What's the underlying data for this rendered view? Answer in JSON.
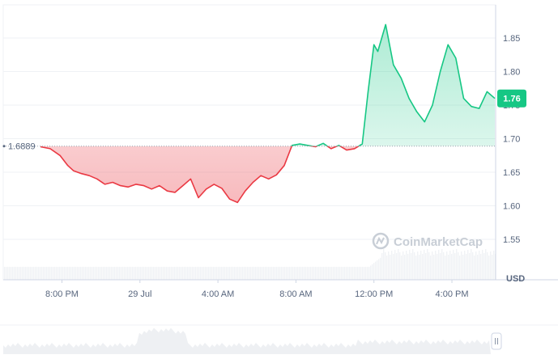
{
  "chart_data": {
    "type": "area",
    "y_ticks": [
      1.55,
      1.6,
      1.65,
      1.7,
      1.75,
      1.8,
      1.85
    ],
    "y_tick_labels": [
      "1.55",
      "1.60",
      "1.65",
      "1.70",
      "1.75",
      "1.80",
      "1.85"
    ],
    "ylim": [
      1.5,
      1.9
    ],
    "x_ticks": [
      "8:00 PM",
      "29 Jul",
      "4:00 AM",
      "8:00 AM",
      "12:00 PM",
      "4:00 PM"
    ],
    "x_tick_hours": [
      3,
      7,
      11,
      15,
      19,
      23
    ],
    "xlim_hours": [
      0,
      25.3
    ],
    "unit_label": "USD",
    "open_price": 1.6889,
    "open_label": "1.6889",
    "current_price": 1.76,
    "current_label": "1.76",
    "watermark": "CoinMarketCap",
    "colors": {
      "up": "#16c784",
      "down": "#ea3943",
      "grid": "#eff2f5",
      "axis_text": "#58667e"
    },
    "series": [
      {
        "hours": [
          1.9,
          2.4,
          2.9,
          3.3,
          3.6,
          4.0,
          4.4,
          4.8,
          5.2,
          5.6,
          6.0,
          6.4,
          6.8,
          7.2,
          7.6,
          8.0,
          8.4,
          8.8,
          9.2,
          9.6,
          10.0,
          10.4,
          10.8,
          11.2,
          11.6,
          12.0,
          12.4,
          12.8,
          13.2,
          13.6,
          14.0,
          14.4,
          14.8,
          15.2,
          15.6,
          16.0,
          16.4,
          16.8,
          17.2,
          17.6,
          18.0,
          18.4,
          18.7,
          19.0,
          19.2,
          19.6,
          20.0,
          20.4,
          20.8,
          21.2,
          21.6,
          22.0,
          22.4,
          22.8,
          23.2,
          23.6,
          24.0,
          24.4,
          24.8,
          25.2
        ],
        "values": [
          1.688,
          1.685,
          1.675,
          1.66,
          1.652,
          1.648,
          1.645,
          1.64,
          1.632,
          1.635,
          1.63,
          1.628,
          1.632,
          1.63,
          1.625,
          1.63,
          1.622,
          1.62,
          1.63,
          1.64,
          1.612,
          1.625,
          1.632,
          1.626,
          1.61,
          1.605,
          1.622,
          1.635,
          1.645,
          1.64,
          1.646,
          1.66,
          1.69,
          1.692,
          1.69,
          1.688,
          1.693,
          1.685,
          1.69,
          1.683,
          1.685,
          1.692,
          1.77,
          1.84,
          1.83,
          1.87,
          1.81,
          1.79,
          1.76,
          1.74,
          1.725,
          1.75,
          1.8,
          1.84,
          1.82,
          1.76,
          1.748,
          1.745,
          1.77,
          1.76
        ]
      }
    ]
  }
}
